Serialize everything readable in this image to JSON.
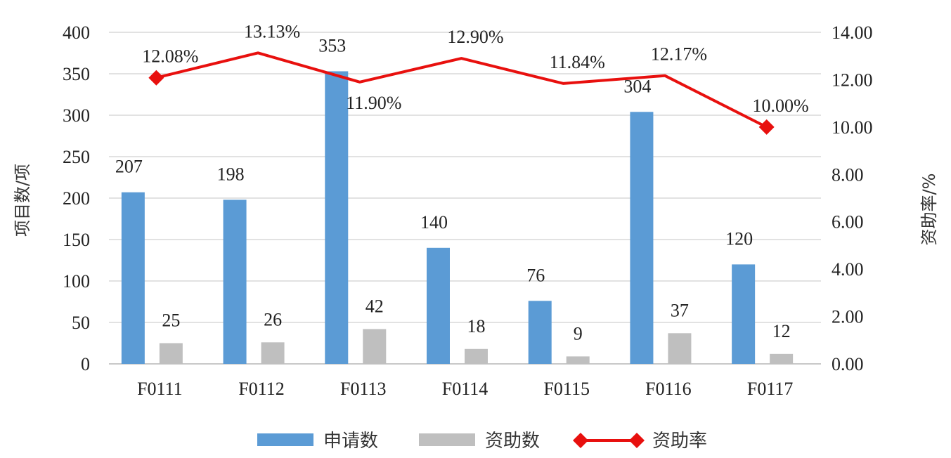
{
  "chart_data": {
    "type": "bar",
    "categories": [
      "F0111",
      "F0112",
      "F0113",
      "F0114",
      "F0115",
      "F0116",
      "F0117"
    ],
    "series": [
      {
        "name": "申请数",
        "kind": "bar",
        "axis": "left",
        "color": "#5b9bd5",
        "values": [
          207,
          198,
          353,
          140,
          76,
          304,
          120
        ],
        "labels": [
          "207",
          "198",
          "353",
          "140",
          "76",
          "304",
          "120"
        ]
      },
      {
        "name": "资助数",
        "kind": "bar",
        "axis": "left",
        "color": "#bfbfbf",
        "values": [
          25,
          26,
          42,
          18,
          9,
          37,
          12
        ],
        "labels": [
          "25",
          "26",
          "42",
          "18",
          "9",
          "37",
          "12"
        ]
      },
      {
        "name": "资助率",
        "kind": "line",
        "axis": "right",
        "color": "#e8100e",
        "marker": "diamond",
        "values": [
          12.08,
          13.13,
          11.9,
          12.9,
          11.84,
          12.17,
          10.0
        ],
        "labels": [
          "12.08%",
          "13.13%",
          "11.90%",
          "12.90%",
          "11.84%",
          "12.17%",
          "10.00%"
        ]
      }
    ],
    "y_left": {
      "label": "项目数/项",
      "ylim": [
        0,
        400
      ],
      "ticks": [
        "0",
        "50",
        "100",
        "150",
        "200",
        "250",
        "300",
        "350",
        "400"
      ]
    },
    "y_right": {
      "label": "资助率/%",
      "ylim": [
        0,
        14
      ],
      "ticks": [
        "0.00",
        "2.00",
        "4.00",
        "6.00",
        "8.00",
        "10.00",
        "12.00",
        "14.00"
      ]
    },
    "grid": true,
    "legend": "bottom"
  }
}
